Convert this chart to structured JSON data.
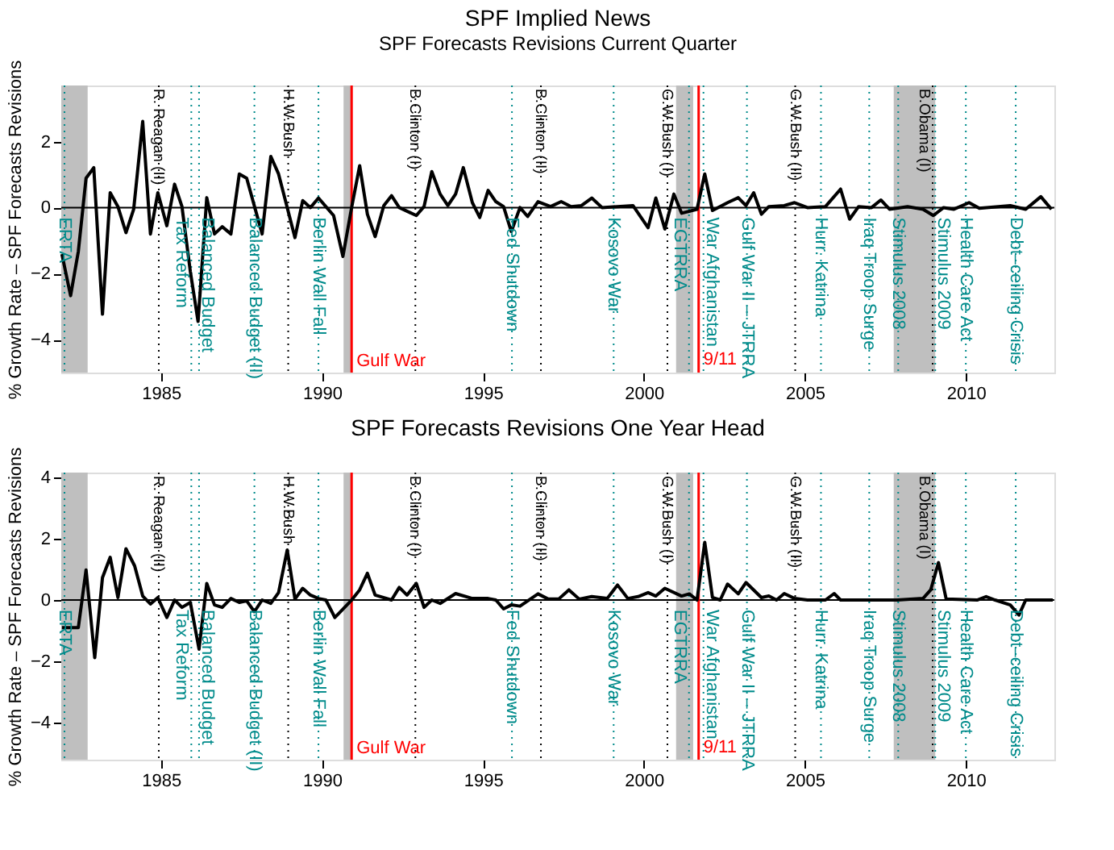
{
  "chart_data": [
    {
      "type": "line",
      "title": "SPF Implied News",
      "subtitle": "SPF Forecasts Revisions Current Quarter",
      "ylabel": "% Growth Rate – SPF Forecasts Revisions",
      "x": [
        1981.92,
        1982.19,
        1982.43,
        1982.67,
        1982.91,
        1983.18,
        1983.42,
        1983.66,
        1983.91,
        1984.15,
        1984.43,
        1984.67,
        1984.9,
        1985.18,
        1985.42,
        1985.65,
        1985.91,
        1986.15,
        1986.42,
        1986.66,
        1986.9,
        1987.17,
        1987.43,
        1987.66,
        1988.14,
        1988.41,
        1988.65,
        1989.16,
        1989.4,
        1989.64,
        1989.89,
        1990.36,
        1990.65,
        1990.92,
        1991.17,
        1991.41,
        1991.65,
        1991.92,
        1992.16,
        1992.4,
        1992.93,
        1993.17,
        1993.41,
        1993.67,
        1993.91,
        1994.15,
        1994.39,
        1994.67,
        1994.9,
        1995.16,
        1995.4,
        1995.64,
        1995.88,
        1996.15,
        1996.39,
        1996.71,
        1997.1,
        1997.43,
        1997.74,
        1998.06,
        1998.38,
        1998.7,
        1999.66,
        2000.13,
        2000.37,
        2000.65,
        2000.93,
        2001.17,
        2001.65,
        2001.89,
        2002.13,
        2002.6,
        2002.93,
        2003.17,
        2003.41,
        2003.65,
        2003.88,
        2004.36,
        2004.68,
        2005.08,
        2005.64,
        2006.11,
        2006.39,
        2006.67,
        2007.07,
        2007.36,
        2007.63,
        2008.19,
        2008.67,
        2008.99,
        2009.31,
        2009.63,
        2010.1,
        2010.42,
        2011.38,
        2011.86,
        2012.33,
        2012.66
      ],
      "series": [
        {
          "color": "#000000",
          "values": [
            -1.41,
            -2.67,
            -1.33,
            0.89,
            1.21,
            -3.23,
            0.45,
            0.03,
            -0.76,
            -0.05,
            2.61,
            -0.8,
            0.45,
            -0.55,
            0.71,
            0.03,
            -1.94,
            -3.45,
            0.3,
            -0.8,
            -0.58,
            -0.8,
            1.02,
            0.89,
            -0.8,
            1.55,
            1.02,
            -0.91,
            0.21,
            0,
            0.29,
            -0.24,
            -1.48,
            0,
            1.27,
            -0.2,
            -0.88,
            0.06,
            0.36,
            0,
            -0.24,
            0.03,
            1.09,
            0.41,
            0.06,
            0.41,
            1.21,
            0.15,
            -0.3,
            0.52,
            0.18,
            0.03,
            -0.73,
            0,
            -0.27,
            0.18,
            0.03,
            0.18,
            0.03,
            0.06,
            0.29,
            0,
            0.06,
            -0.61,
            0.29,
            -0.65,
            0.41,
            -0.17,
            -0.05,
            1.02,
            -0.09,
            0.15,
            0.3,
            0.06,
            0.45,
            -0.2,
            0.03,
            0.06,
            0.15,
            0,
            0.03,
            0.56,
            -0.35,
            0.03,
            0,
            0.23,
            -0.05,
            0.03,
            -0.05,
            -0.24,
            0,
            -0.05,
            0.15,
            -0.02,
            0.06,
            -0.05,
            0.33,
            -0.05
          ]
        }
      ],
      "xlim": [
        1981.9,
        2012.75
      ],
      "ylim": [
        -5,
        3.7
      ],
      "xticks": [
        1985,
        1990,
        1995,
        2000,
        2005,
        2010
      ],
      "yticks": [
        -4,
        -2,
        0,
        2
      ],
      "grid": false,
      "line_style": "solid",
      "marker": "none",
      "bands": [
        {
          "axis": "x",
          "from": 1981.9,
          "to": 1982.72,
          "color": "#bfbfbf"
        },
        {
          "axis": "x",
          "from": 1990.67,
          "to": 1990.91,
          "color": "#bfbfbf"
        },
        {
          "axis": "x",
          "from": 2001.0,
          "to": 2001.53,
          "color": "#bfbfbf"
        },
        {
          "axis": "x",
          "from": 2007.76,
          "to": 2009.05,
          "color": "#bfbfbf"
        }
      ],
      "ref_lines": [
        {
          "axis": "y",
          "value": 0,
          "color": "#000000",
          "line_style": "solid"
        },
        {
          "axis": "x",
          "value": 1990.92,
          "label": "Gulf War",
          "color": "#ff0000",
          "line_style": "solid"
        },
        {
          "axis": "x",
          "value": 2001.7,
          "color": "#ff0000",
          "line_style": "solid"
        },
        {
          "axis": "x",
          "value": 1984.93,
          "label": "R. Reagan (II)",
          "color": "#000000",
          "line_style": "dotted"
        },
        {
          "axis": "x",
          "value": 1988.95,
          "label": "H.W.Bush",
          "color": "#000000",
          "line_style": "dotted"
        },
        {
          "axis": "x",
          "value": 1992.9,
          "label": "B.Clinton (I)",
          "color": "#000000",
          "line_style": "dotted"
        },
        {
          "axis": "x",
          "value": 1996.8,
          "label": "B.Clinton (II)",
          "color": "#000000",
          "line_style": "dotted"
        },
        {
          "axis": "x",
          "value": 2000.73,
          "label": "G.W.Bush (I)",
          "color": "#000000",
          "line_style": "dotted"
        },
        {
          "axis": "x",
          "value": 2004.7,
          "label": "G.W.Bush (II)",
          "color": "#000000",
          "line_style": "dotted"
        },
        {
          "axis": "x",
          "value": 2008.97,
          "label": "B.Obama (I)",
          "color": "#000000",
          "line_style": "dotted"
        },
        {
          "axis": "x",
          "value": 1982.0,
          "label": "ERTA",
          "color": "#008b8b",
          "line_style": "dotted"
        },
        {
          "axis": "x",
          "value": 1985.94,
          "label": "Tax Reform",
          "color": "#008b8b",
          "line_style": "dotted"
        },
        {
          "axis": "x",
          "value": 1986.18,
          "label": "Balanced Budget",
          "color": "#008b8b",
          "line_style": "dotted"
        },
        {
          "axis": "x",
          "value": 1987.9,
          "label": "Balanced Budget (II)",
          "color": "#008b8b",
          "line_style": "dotted"
        },
        {
          "axis": "x",
          "value": 1989.89,
          "label": "Berlin Wall Fall",
          "color": "#008b8b",
          "line_style": "dotted"
        },
        {
          "axis": "x",
          "value": 1995.9,
          "label": "Fed Shutdown",
          "color": "#008b8b",
          "line_style": "dotted"
        },
        {
          "axis": "x",
          "value": 1999.06,
          "label": "Kosovo War",
          "color": "#008b8b",
          "line_style": "dotted"
        },
        {
          "axis": "x",
          "value": 2001.4,
          "label": "EGTRRA",
          "color": "#008b8b",
          "line_style": "dotted"
        },
        {
          "axis": "x",
          "value": 2001.85,
          "label": "War Afghanistan",
          "color": "#008b8b",
          "line_style": "dotted"
        },
        {
          "axis": "x",
          "value": 2003.2,
          "label": "Gulf War II – JTRRA",
          "color": "#008b8b",
          "line_style": "dotted"
        },
        {
          "axis": "x",
          "value": 2005.5,
          "label": "Hurr. Katrina",
          "color": "#008b8b",
          "line_style": "dotted"
        },
        {
          "axis": "x",
          "value": 2007.0,
          "label": "Iraq Troop Surge",
          "color": "#008b8b",
          "line_style": "dotted"
        },
        {
          "axis": "x",
          "value": 2007.9,
          "label": "Stimulus 2008",
          "color": "#008b8b",
          "line_style": "dotted"
        },
        {
          "axis": "x",
          "value": 2009.05,
          "label": "Stimulus 2009",
          "color": "#008b8b",
          "line_style": "dotted"
        },
        {
          "axis": "x",
          "value": 2010.0,
          "label": "Health Care Act",
          "color": "#008b8b",
          "line_style": "dotted"
        },
        {
          "axis": "x",
          "value": 2011.55,
          "label": "Debt–ceiling Crisis",
          "color": "#008b8b",
          "line_style": "dotted"
        }
      ],
      "annotations": [
        {
          "text": "9/11",
          "x": 2001.7,
          "y": -4.6
        }
      ]
    },
    {
      "type": "line",
      "title": "SPF Forecasts Revisions One Year Head",
      "ylabel": "% Growth Rate – SPF Forecasts Revisions",
      "x": [
        1981.92,
        1982.43,
        1982.67,
        1982.94,
        1983.18,
        1983.42,
        1983.66,
        1983.91,
        1984.18,
        1984.43,
        1984.67,
        1984.9,
        1985.18,
        1985.42,
        1985.65,
        1985.91,
        1986.18,
        1986.42,
        1986.66,
        1986.9,
        1987.17,
        1987.43,
        1987.66,
        1987.9,
        1988.14,
        1988.41,
        1988.65,
        1988.92,
        1989.16,
        1989.4,
        1989.64,
        1989.89,
        1990.12,
        1990.4,
        1990.92,
        1991.17,
        1991.41,
        1991.65,
        1992.16,
        1992.4,
        1992.64,
        1992.93,
        1993.17,
        1993.41,
        1993.67,
        1994.15,
        1994.67,
        1995.16,
        1995.4,
        1995.64,
        1995.88,
        1996.15,
        1996.71,
        1997.03,
        1997.35,
        1997.67,
        1997.99,
        1998.38,
        1998.86,
        1999.18,
        1999.5,
        1999.82,
        2000.13,
        2000.37,
        2000.65,
        2001.17,
        2001.41,
        2001.65,
        2001.89,
        2002.13,
        2002.37,
        2002.6,
        2002.93,
        2003.17,
        2003.65,
        2003.88,
        2004.12,
        2004.36,
        2004.68,
        2005.08,
        2005.64,
        2005.91,
        2006.11,
        2007.87,
        2008.67,
        2008.91,
        2009.15,
        2009.39,
        2010.35,
        2010.63,
        2010.91,
        2011.38,
        2011.65,
        2011.86,
        2012.7
      ],
      "series": [
        {
          "color": "#000000",
          "values": [
            -0.9,
            -0.9,
            0.98,
            -1.88,
            0.73,
            1.39,
            0.08,
            1.67,
            1.11,
            0.13,
            -0.13,
            0.08,
            -0.57,
            0,
            -0.24,
            -0.08,
            -1.6,
            0.54,
            -0.16,
            -0.24,
            0.05,
            -0.08,
            -0.03,
            -0.38,
            0,
            -0.11,
            0.24,
            1.63,
            0.03,
            0.38,
            0.16,
            0.05,
            0,
            -0.57,
            0,
            0.33,
            0.87,
            0.16,
            0,
            0.41,
            0.16,
            0.54,
            -0.24,
            0,
            -0.11,
            0.21,
            0.05,
            0.05,
            0,
            -0.29,
            -0.16,
            -0.2,
            0.2,
            0.03,
            0.03,
            0.33,
            0.03,
            0.11,
            0.05,
            0.49,
            0.05,
            0.11,
            0.24,
            0.13,
            0.38,
            0.13,
            0.2,
            0,
            1.88,
            0.08,
            0,
            0.52,
            0.2,
            0.57,
            0.08,
            0.13,
            0,
            0.21,
            0.05,
            0,
            0,
            0.21,
            0,
            0,
            0.05,
            0.33,
            1.22,
            0.03,
            0,
            0.11,
            0,
            -0.16,
            -0.49,
            0,
            0
          ]
        }
      ],
      "xlim": [
        1981.9,
        2012.75
      ],
      "ylim": [
        -5.2,
        4.15
      ],
      "xticks": [
        1985,
        1990,
        1995,
        2000,
        2005,
        2010
      ],
      "yticks": [
        -4,
        -2,
        0,
        2,
        4
      ],
      "grid": false,
      "line_style": "solid",
      "marker": "none",
      "bands": [
        {
          "axis": "x",
          "from": 1981.9,
          "to": 1982.72,
          "color": "#bfbfbf"
        },
        {
          "axis": "x",
          "from": 1990.67,
          "to": 1990.91,
          "color": "#bfbfbf"
        },
        {
          "axis": "x",
          "from": 2001.0,
          "to": 2001.53,
          "color": "#bfbfbf"
        },
        {
          "axis": "x",
          "from": 2007.76,
          "to": 2009.05,
          "color": "#bfbfbf"
        }
      ],
      "ref_lines": [
        {
          "axis": "y",
          "value": 0,
          "color": "#000000",
          "line_style": "solid"
        },
        {
          "axis": "x",
          "value": 1990.92,
          "label": "Gulf War",
          "color": "#ff0000",
          "line_style": "solid"
        },
        {
          "axis": "x",
          "value": 2001.7,
          "color": "#ff0000",
          "line_style": "solid"
        },
        {
          "axis": "x",
          "value": 1984.93,
          "label": "R. Reagan (II)",
          "color": "#000000",
          "line_style": "dotted"
        },
        {
          "axis": "x",
          "value": 1988.95,
          "label": "H.W.Bush",
          "color": "#000000",
          "line_style": "dotted"
        },
        {
          "axis": "x",
          "value": 1992.9,
          "label": "B.Clinton (I)",
          "color": "#000000",
          "line_style": "dotted"
        },
        {
          "axis": "x",
          "value": 1996.8,
          "label": "B.Clinton (II)",
          "color": "#000000",
          "line_style": "dotted"
        },
        {
          "axis": "x",
          "value": 2000.73,
          "label": "G.W.Bush (I)",
          "color": "#000000",
          "line_style": "dotted"
        },
        {
          "axis": "x",
          "value": 2004.7,
          "label": "G.W.Bush (II)",
          "color": "#000000",
          "line_style": "dotted"
        },
        {
          "axis": "x",
          "value": 2008.97,
          "label": "B.Obama (I)",
          "color": "#000000",
          "line_style": "dotted"
        },
        {
          "axis": "x",
          "value": 1982.0,
          "label": "ERTA",
          "color": "#008b8b",
          "line_style": "dotted"
        },
        {
          "axis": "x",
          "value": 1985.94,
          "label": "Tax Reform",
          "color": "#008b8b",
          "line_style": "dotted"
        },
        {
          "axis": "x",
          "value": 1986.18,
          "label": "Balanced Budget",
          "color": "#008b8b",
          "line_style": "dotted"
        },
        {
          "axis": "x",
          "value": 1987.9,
          "label": "Balanced Budget (II)",
          "color": "#008b8b",
          "line_style": "dotted"
        },
        {
          "axis": "x",
          "value": 1989.89,
          "label": "Berlin Wall Fall",
          "color": "#008b8b",
          "line_style": "dotted"
        },
        {
          "axis": "x",
          "value": 1995.9,
          "label": "Fed Shutdown",
          "color": "#008b8b",
          "line_style": "dotted"
        },
        {
          "axis": "x",
          "value": 1999.06,
          "label": "Kosovo War",
          "color": "#008b8b",
          "line_style": "dotted"
        },
        {
          "axis": "x",
          "value": 2001.4,
          "label": "EGTRRA",
          "color": "#008b8b",
          "line_style": "dotted"
        },
        {
          "axis": "x",
          "value": 2001.85,
          "label": "War Afghanistan",
          "color": "#008b8b",
          "line_style": "dotted"
        },
        {
          "axis": "x",
          "value": 2003.2,
          "label": "Gulf War II – JTRRA",
          "color": "#008b8b",
          "line_style": "dotted"
        },
        {
          "axis": "x",
          "value": 2005.5,
          "label": "Hurr. Katrina",
          "color": "#008b8b",
          "line_style": "dotted"
        },
        {
          "axis": "x",
          "value": 2007.0,
          "label": "Iraq Troop Surge",
          "color": "#008b8b",
          "line_style": "dotted"
        },
        {
          "axis": "x",
          "value": 2007.9,
          "label": "Stimulus 2008",
          "color": "#008b8b",
          "line_style": "dotted"
        },
        {
          "axis": "x",
          "value": 2009.05,
          "label": "Stimulus 2009",
          "color": "#008b8b",
          "line_style": "dotted"
        },
        {
          "axis": "x",
          "value": 2010.0,
          "label": "Health Care Act",
          "color": "#008b8b",
          "line_style": "dotted"
        },
        {
          "axis": "x",
          "value": 2011.55,
          "label": "Debt–ceiling Crisis",
          "color": "#008b8b",
          "line_style": "dotted"
        }
      ],
      "annotations": [
        {
          "text": "9/11",
          "x": 2001.7,
          "y": -4.8
        }
      ]
    }
  ]
}
